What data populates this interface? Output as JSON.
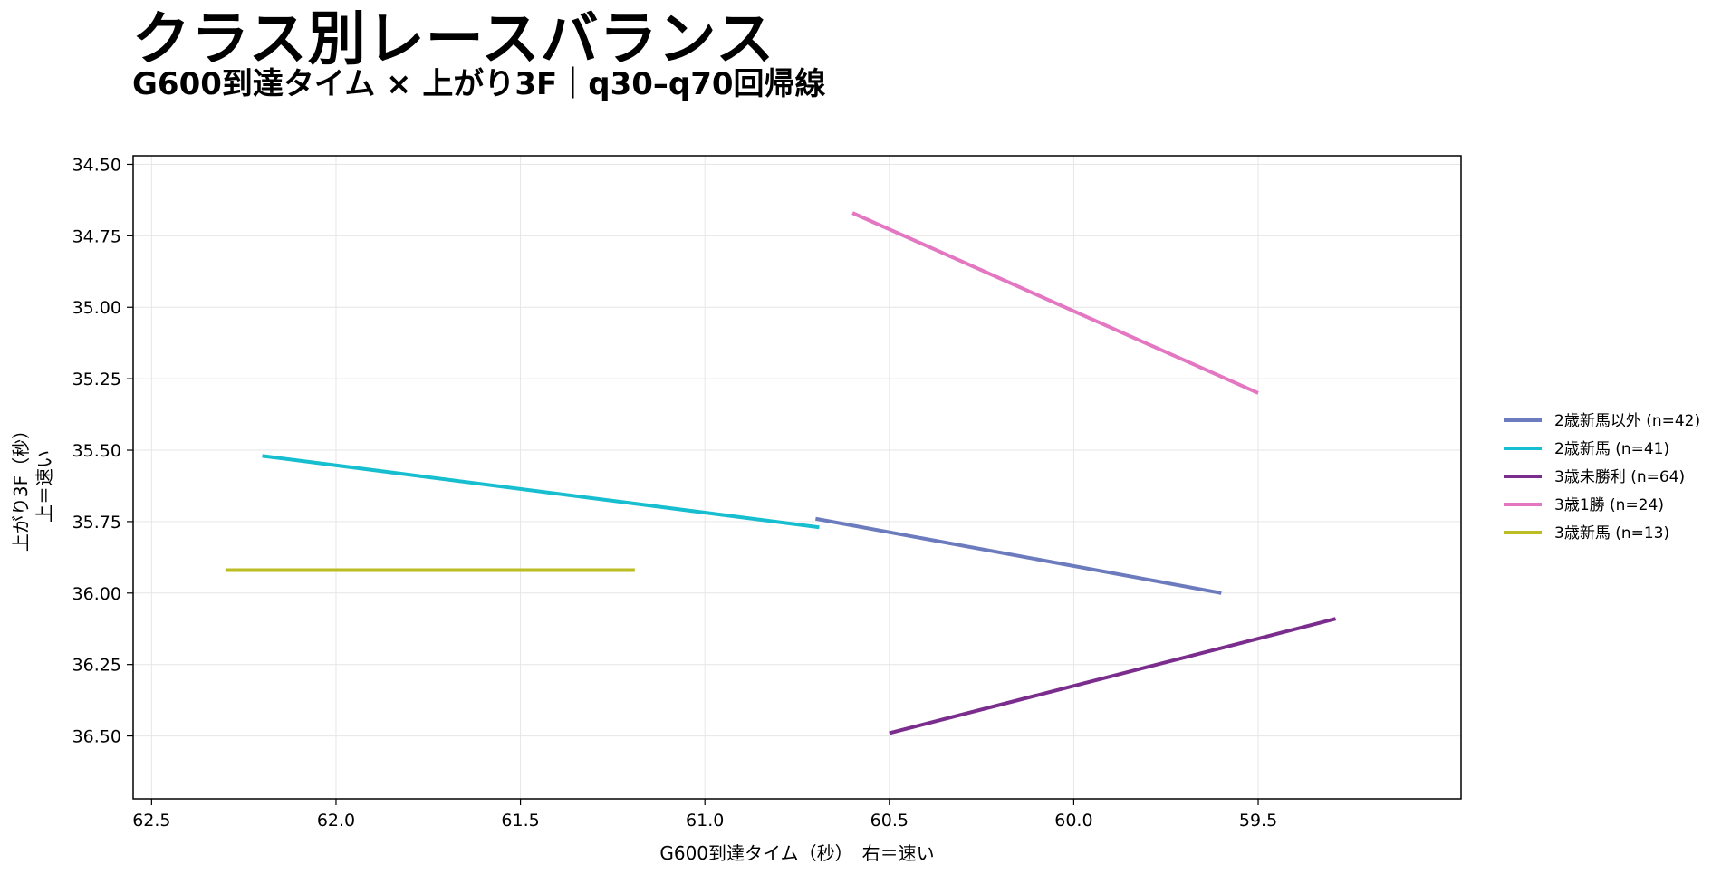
{
  "title": "クラス別レースバランス",
  "subtitle": "G600到達タイム × 上がり3F｜q30–q70回帰線",
  "chart_data": {
    "type": "line",
    "title": "クラス別レースバランス",
    "subtitle": "G600到達タイム × 上がり3F｜q30–q70回帰線",
    "xlabel": "G600到達タイム（秒）　右＝速い",
    "ylabel": "上がり3F（秒）",
    "ylabel_note": "上＝速い",
    "x_reversed": true,
    "y_reversed": true,
    "xlim": [
      62.55,
      58.95
    ],
    "ylim": [
      36.72,
      34.47
    ],
    "xticks": [
      "62.5",
      "62.0",
      "61.5",
      "61.0",
      "60.5",
      "60.0",
      "59.5"
    ],
    "yticks": [
      "34.50",
      "34.75",
      "35.00",
      "35.25",
      "35.50",
      "35.75",
      "36.00",
      "36.25",
      "36.50"
    ],
    "grid": true,
    "legend_position": "right",
    "series": [
      {
        "name": "2歳新馬以外 (n=42)",
        "color": "#6b7bbd",
        "x": [
          60.7,
          59.6
        ],
        "y": [
          35.74,
          36.0
        ]
      },
      {
        "name": "2歳新馬 (n=41)",
        "color": "#17becf",
        "x": [
          62.2,
          60.69
        ],
        "y": [
          35.52,
          35.77
        ]
      },
      {
        "name": "3歳未勝利 (n=64)",
        "color": "#7b2d8e",
        "x": [
          60.5,
          59.29
        ],
        "y": [
          36.49,
          36.09
        ]
      },
      {
        "name": "3歳1勝 (n=24)",
        "color": "#e377c2",
        "x": [
          60.6,
          59.5
        ],
        "y": [
          34.67,
          35.3
        ]
      },
      {
        "name": "3歳新馬 (n=13)",
        "color": "#bcbd22",
        "x": [
          62.3,
          61.19
        ],
        "y": [
          35.92,
          35.92
        ]
      }
    ]
  }
}
